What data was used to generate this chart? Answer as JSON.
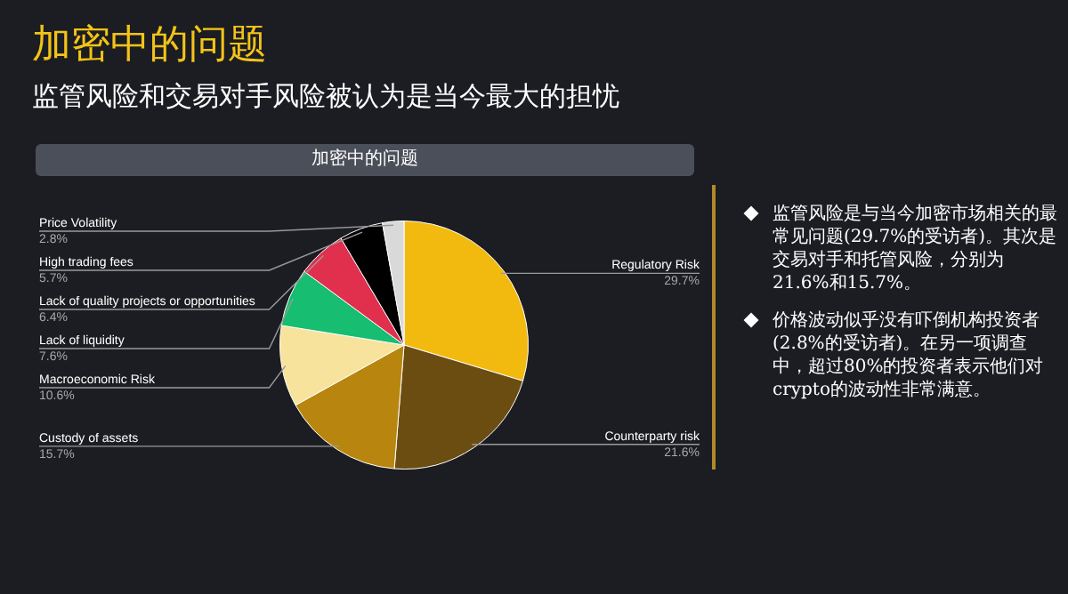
{
  "chart_data": {
    "type": "pie",
    "title": "加密中的问题",
    "subtitle": "监管风险和交易对手风险被认为是当今最大的担忧",
    "categories": [
      "Regulatory Risk",
      "Counterparty risk",
      "Custody of assets",
      "Macroeconomic Risk",
      "Lack of liquidity",
      "Lack of quality projects or opportunities",
      "High trading fees",
      "Price Volatility"
    ],
    "values": [
      29.7,
      21.6,
      15.7,
      10.6,
      7.6,
      6.4,
      5.7,
      2.8
    ],
    "value_labels": [
      "29.7%",
      "21.6%",
      "15.7%",
      "10.6%",
      "7.6%",
      "6.4%",
      "5.7%",
      "2.8%"
    ],
    "colors": [
      "#f2b90f",
      "#6b4d12",
      "#b8860f",
      "#f8e39c",
      "#17bd70",
      "#e0304e",
      "#000000",
      "#d9d9d9"
    ],
    "legend": false,
    "annotations": [
      "加密中的问题",
      "监管风险是与当今加密市场相关的最常见问题(29.7%的受访者)。其次是交易对手和托管风险，分别为21.6%和15.7%。",
      "价格波动似乎没有吓倒机构投资者(2.8%的受访者)。在另一项调查中，超过80%的投资者表示他们对crypto的波动性非常满意。"
    ]
  }
}
